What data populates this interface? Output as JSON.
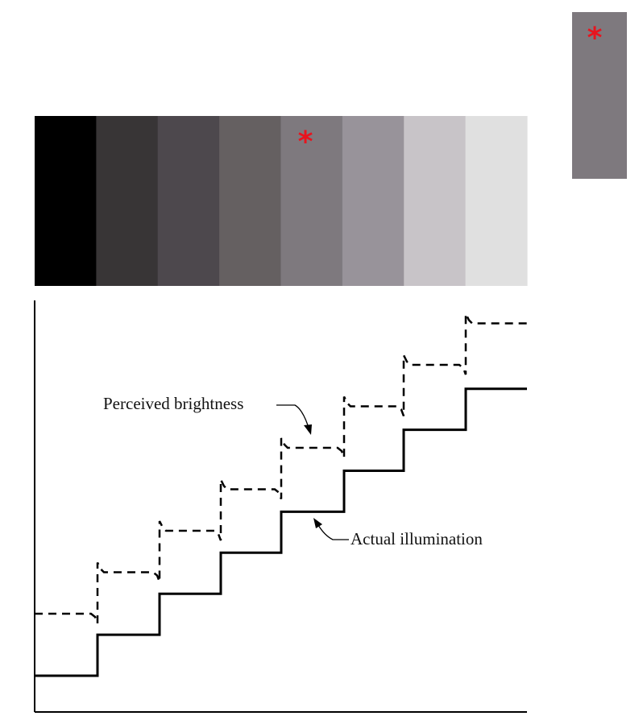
{
  "marker_symbol": "*",
  "marker_color": "#e8141e",
  "gray_bands": [
    {
      "color": "#000000",
      "marked": false
    },
    {
      "color": "#383536",
      "marked": false
    },
    {
      "color": "#4d484d",
      "marked": false
    },
    {
      "color": "#656061",
      "marked": false
    },
    {
      "color": "#7e797e",
      "marked": true
    },
    {
      "color": "#98939a",
      "marked": false
    },
    {
      "color": "#c8c4c8",
      "marked": false
    },
    {
      "color": "#e0e0e0",
      "marked": false
    }
  ],
  "reference_patch": {
    "color": "#7e797e",
    "marked": true
  },
  "plot": {
    "steps": 8,
    "actual_illumination": {
      "label": "Actual illumination",
      "style": "solid",
      "levels": [
        1,
        2,
        3,
        4,
        5,
        6,
        7,
        8
      ]
    },
    "perceived_brightness": {
      "label": "Perceived brightness",
      "style": "dashed",
      "levels": [
        1,
        2,
        3,
        4,
        5,
        6,
        7,
        8
      ],
      "edge_effects": "overshoot and undershoot at each step"
    }
  }
}
